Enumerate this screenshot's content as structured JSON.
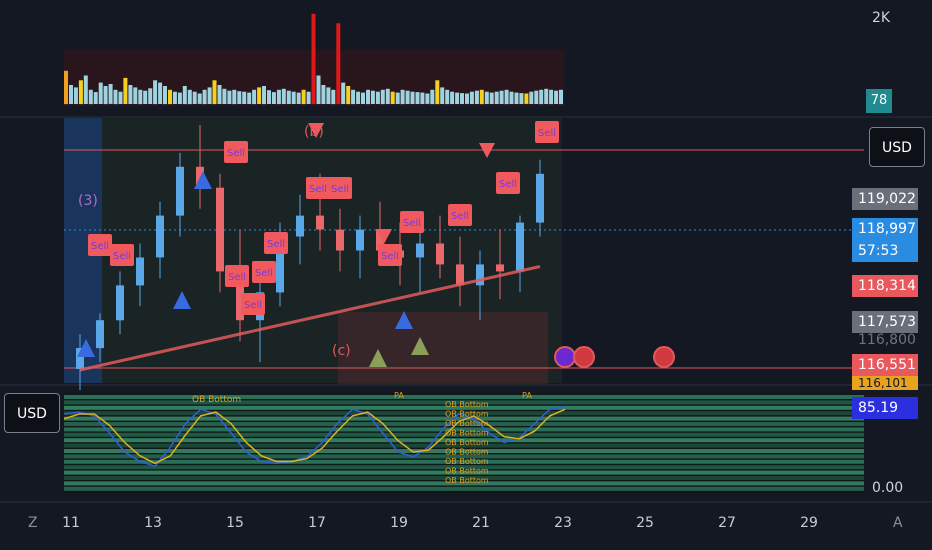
{
  "colors": {
    "background": "#141822",
    "bull_candle": "#5aa8e8",
    "bear_candle": "#e8686c",
    "sell_label": "#f05a5e",
    "ma_line": "#e05a5c",
    "osc_blue": "#2f5fd8",
    "osc_yellow": "#e0b020"
  },
  "volume_axis": {
    "max_label": "2K",
    "badge_value": "78"
  },
  "price_axis": {
    "currency_top": "USD",
    "tag_119022": "119,022",
    "tag_118997": "118,997",
    "countdown": "57:53",
    "tag_118314": "118,314",
    "tag_117573": "117,573",
    "tag_116800": "116,800",
    "tag_116551": "116,551",
    "tag_116101": "116,101"
  },
  "oscillator": {
    "currency": "USD",
    "value_label": "85.19",
    "zero_label": "0.00",
    "ob_bottom_label": "OB Bottom",
    "pa_label": "PA"
  },
  "annotations": {
    "wave_b": "(b)",
    "wave_c": "(c)",
    "wave_3": "(3)",
    "sell": "Sell"
  },
  "corner_z": "Z",
  "corner_a": "A",
  "chart_data": [
    {
      "type": "candlestick",
      "title": "",
      "xlabel": "",
      "ylabel": "",
      "x_ticks": [
        "11",
        "13",
        "15",
        "17",
        "19",
        "21",
        "23",
        "25",
        "27",
        "29"
      ],
      "price_levels": [
        119022,
        118997,
        118314,
        117573,
        116800,
        116551,
        116101
      ],
      "ohlc": [
        [
          116200,
          116700,
          115900,
          116500
        ],
        [
          116500,
          117000,
          116300,
          116900
        ],
        [
          116900,
          117600,
          116700,
          117400
        ],
        [
          117400,
          118000,
          117100,
          117800
        ],
        [
          117800,
          118600,
          117500,
          118400
        ],
        [
          118400,
          119300,
          118100,
          119100
        ],
        [
          119100,
          119700,
          118500,
          118800
        ],
        [
          118800,
          119000,
          117300,
          117600
        ],
        [
          117600,
          118200,
          116600,
          116900
        ],
        [
          116900,
          117500,
          116300,
          117300
        ],
        [
          117300,
          118300,
          117100,
          118100
        ],
        [
          118100,
          118700,
          117700,
          118400
        ],
        [
          118400,
          119000,
          117900,
          118200
        ],
        [
          118200,
          118500,
          117600,
          117900
        ],
        [
          117900,
          118400,
          117500,
          118200
        ],
        [
          118200,
          118600,
          117700,
          117900
        ],
        [
          117900,
          118300,
          117400,
          117800
        ],
        [
          117800,
          118200,
          117300,
          118000
        ],
        [
          118000,
          118400,
          117500,
          117700
        ],
        [
          117700,
          118100,
          117100,
          117400
        ],
        [
          117400,
          117900,
          116900,
          117700
        ],
        [
          117700,
          118200,
          117200,
          117600
        ],
        [
          117600,
          118400,
          117300,
          118300
        ],
        [
          118300,
          119200,
          118100,
          119000
        ]
      ]
    },
    {
      "type": "bar",
      "title": "Volume",
      "values": [
        700,
        400,
        350,
        500,
        600,
        300,
        250,
        450,
        380,
        420,
        300,
        260,
        550,
        400,
        350,
        300,
        280,
        330,
        500,
        450,
        380,
        300,
        260,
        240,
        380,
        300,
        260,
        220,
        300,
        350,
        500,
        400,
        320,
        280,
        300,
        270,
        260,
        240,
        300,
        350,
        380,
        290,
        250,
        300,
        320,
        280,
        260,
        240,
        300,
        260,
        1900,
        600,
        400,
        350,
        300,
        1700,
        450,
        380,
        300,
        260,
        240,
        300,
        280,
        260,
        300,
        320,
        260,
        240,
        300,
        280,
        260,
        250,
        240,
        220,
        300,
        500,
        350,
        300,
        260,
        240,
        230,
        220,
        260,
        280,
        300,
        260,
        240,
        260,
        280,
        300,
        260,
        240,
        230,
        220,
        260,
        280,
        300,
        320,
        300,
        280,
        300
      ]
    },
    {
      "type": "line",
      "title": "Oscillator",
      "series": [
        {
          "values": [
            80,
            82,
            78,
            60,
            40,
            30,
            25,
            45,
            70,
            85,
            80,
            60,
            40,
            30,
            28,
            30,
            35,
            50,
            70,
            85,
            80,
            60,
            40,
            35,
            45,
            65,
            80,
            75,
            60,
            50,
            55,
            70,
            85,
            88
          ]
        },
        {
          "values": [
            75,
            80,
            80,
            68,
            50,
            36,
            28,
            36,
            58,
            78,
            82,
            70,
            50,
            36,
            30,
            30,
            33,
            44,
            62,
            78,
            82,
            70,
            52,
            40,
            42,
            56,
            72,
            78,
            68,
            56,
            54,
            62,
            78,
            85
          ]
        }
      ],
      "ylim": [
        0,
        100
      ]
    }
  ]
}
